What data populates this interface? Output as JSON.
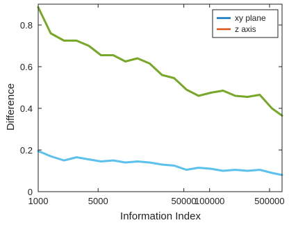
{
  "chart_data": {
    "type": "line",
    "xlabel": "Information Index",
    "ylabel": "Difference",
    "x_scale": "log",
    "xlim": [
      1000,
      700000
    ],
    "ylim": [
      0,
      0.9
    ],
    "grid": false,
    "legend_position": "top-right",
    "xticks": [
      1000,
      5000,
      50000,
      100000,
      500000
    ],
    "xtick_labels": [
      "1000",
      "5000",
      "50000",
      "100000",
      "500000"
    ],
    "yticks": [
      0,
      0.2,
      0.4,
      0.6,
      0.8
    ],
    "ytick_labels": [
      "0",
      "0.2",
      "0.4",
      "0.6",
      "0.8"
    ],
    "legend": [
      {
        "label": "xy plane",
        "color": "#0a72bd"
      },
      {
        "label": "z axis",
        "color": "#d95318"
      }
    ],
    "plotted_lines": [
      {
        "color": "#78a82a",
        "x": [
          1000,
          1400,
          2000,
          2800,
          3900,
          5400,
          7500,
          10400,
          14400,
          20000,
          27800,
          38600,
          53600,
          74400,
          103300,
          143500,
          199200,
          276600,
          384200,
          533500,
          700000
        ],
        "y": [
          0.885,
          0.76,
          0.725,
          0.725,
          0.7,
          0.655,
          0.655,
          0.625,
          0.64,
          0.615,
          0.56,
          0.545,
          0.49,
          0.46,
          0.475,
          0.485,
          0.46,
          0.455,
          0.465,
          0.4,
          0.365
        ]
      },
      {
        "color": "#5cc1ec",
        "x": [
          1000,
          1400,
          2000,
          2800,
          3900,
          5400,
          7500,
          10400,
          14400,
          20000,
          27800,
          38600,
          53600,
          74400,
          103300,
          143500,
          199200,
          276600,
          384200,
          533500,
          700000
        ],
        "y": [
          0.195,
          0.17,
          0.15,
          0.165,
          0.155,
          0.145,
          0.15,
          0.14,
          0.145,
          0.14,
          0.13,
          0.125,
          0.105,
          0.115,
          0.11,
          0.1,
          0.105,
          0.1,
          0.105,
          0.09,
          0.08
        ]
      }
    ]
  }
}
